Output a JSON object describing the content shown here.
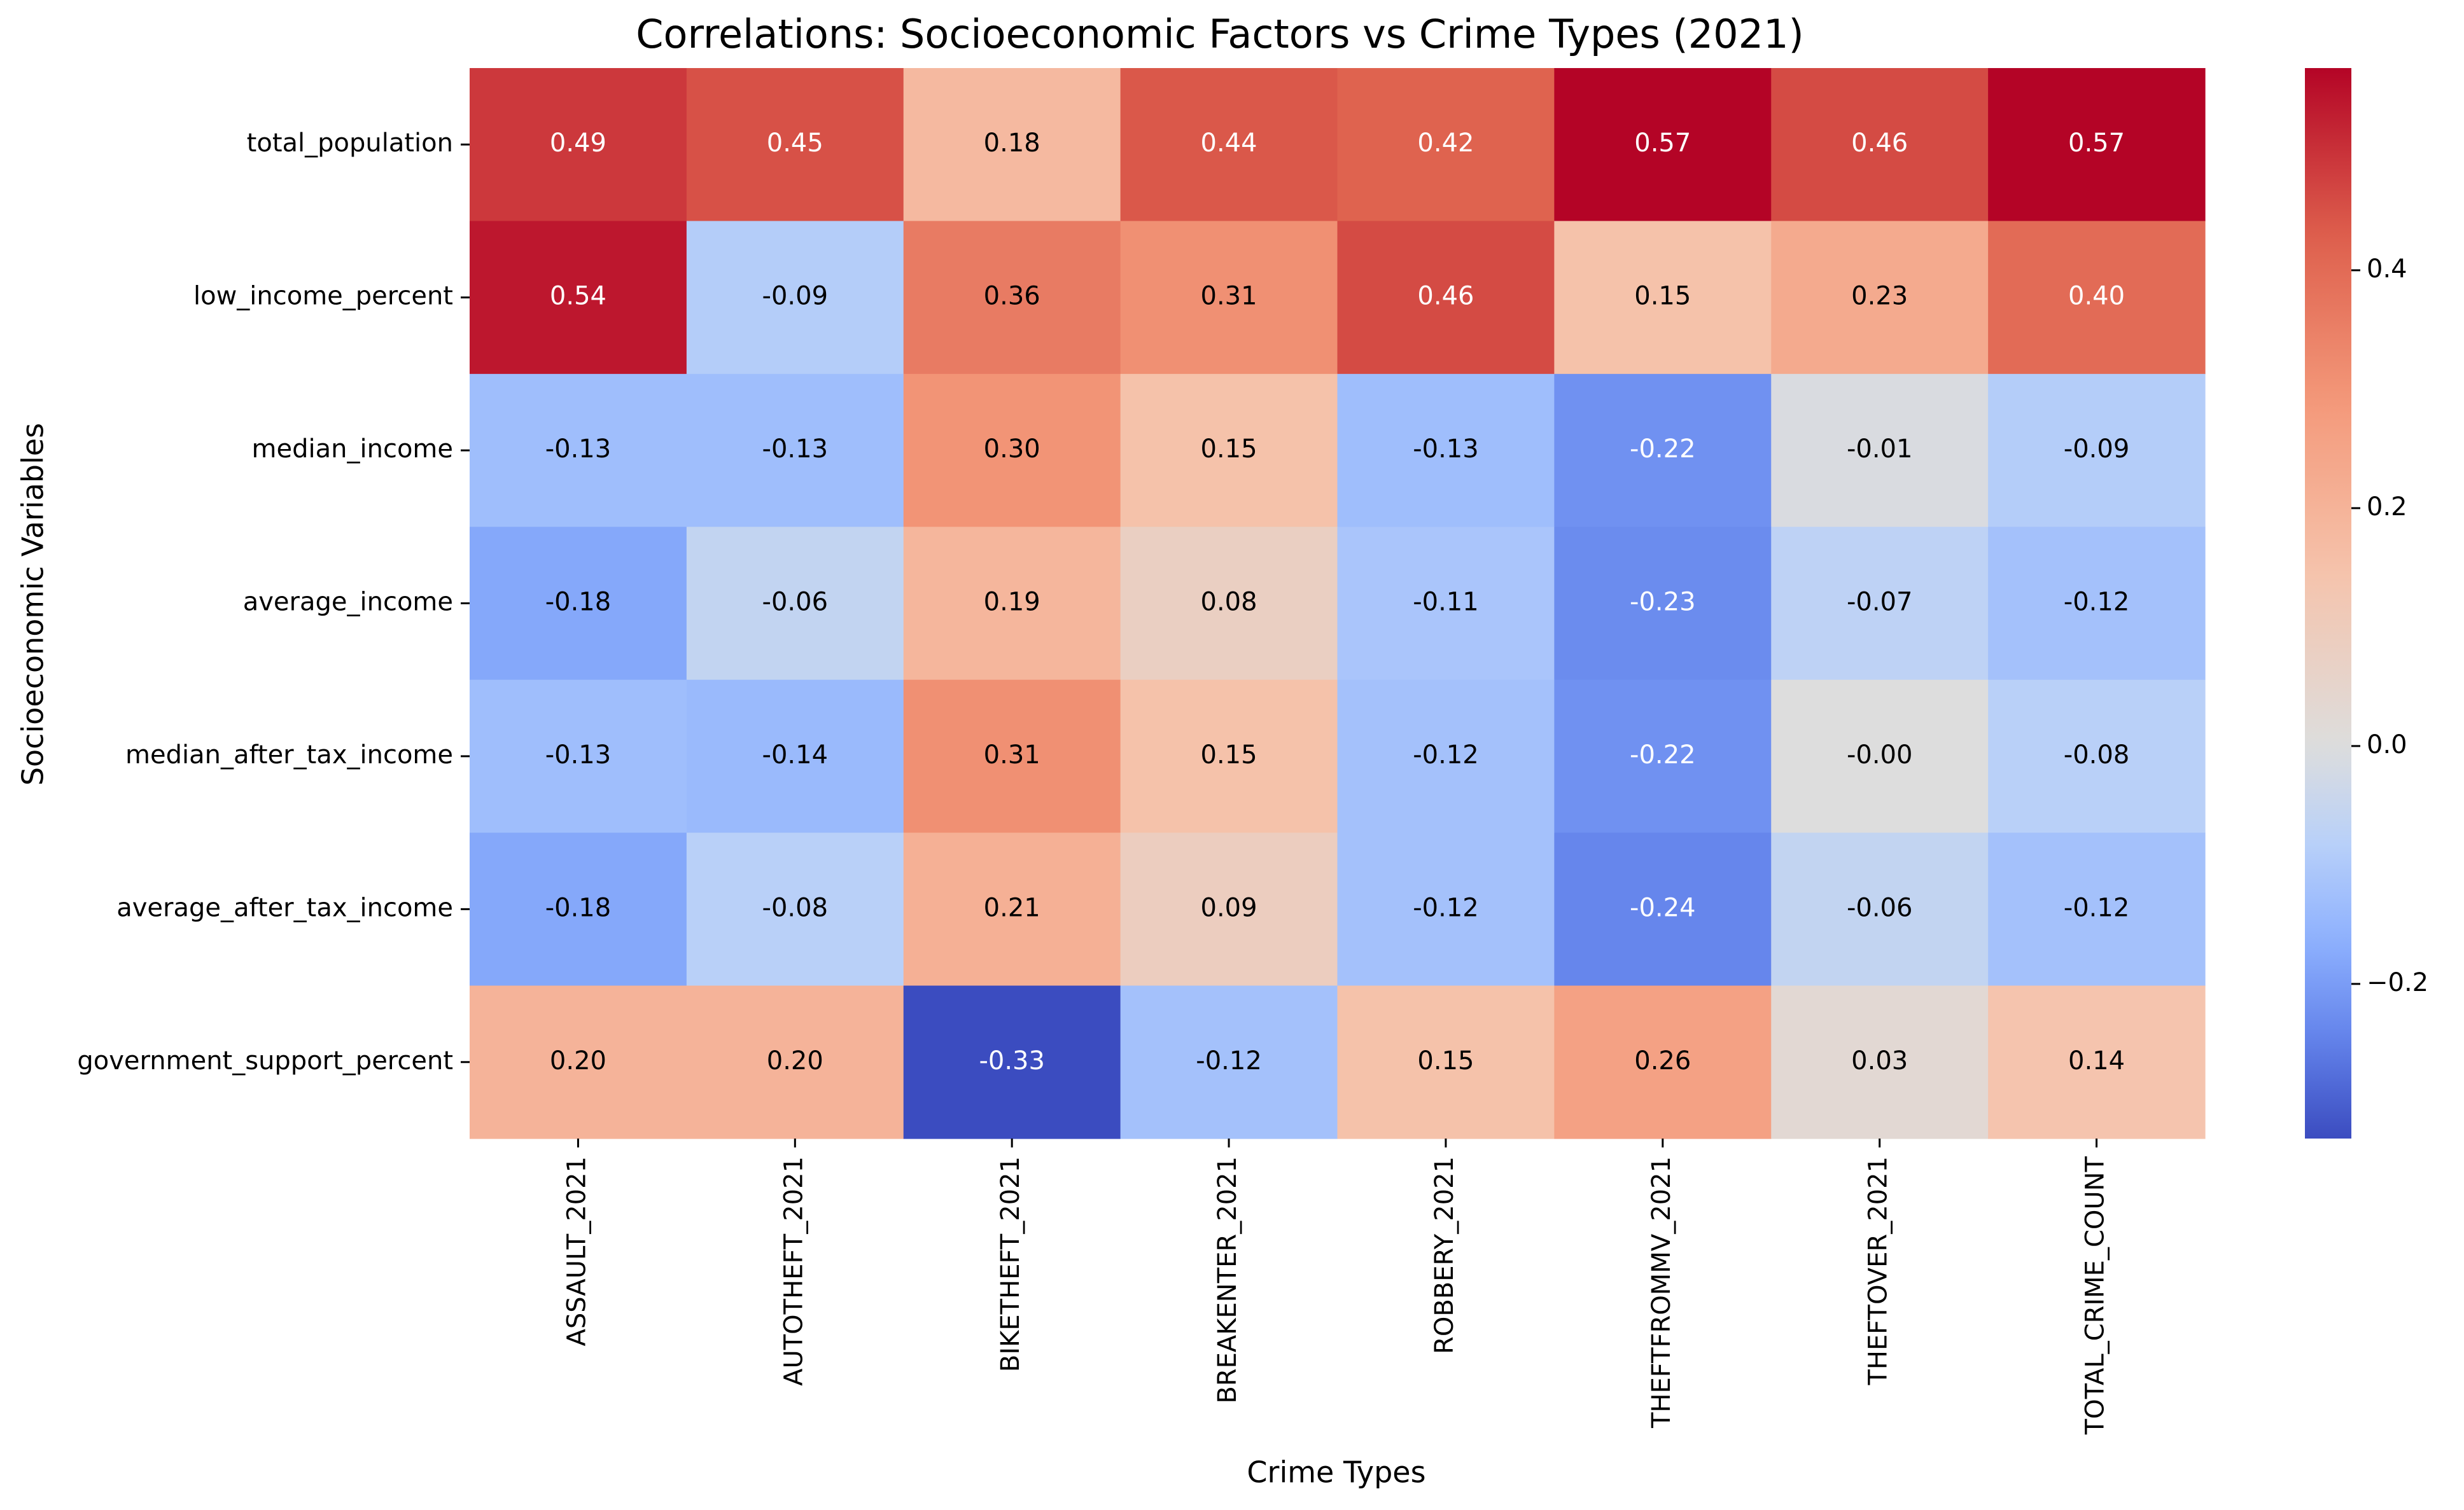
{
  "chart_data": {
    "type": "heatmap",
    "title": "Correlations: Socioeconomic Factors vs Crime Types (2021)",
    "xlabel": "Crime Types",
    "ylabel": "Socioeconomic Variables",
    "x_categories": [
      "ASSAULT_2021",
      "AUTOTHEFT_2021",
      "BIKETHEFT_2021",
      "BREAKENTER_2021",
      "ROBBERY_2021",
      "THEFTFROMMV_2021",
      "THEFTOVER_2021",
      "TOTAL_CRIME_COUNT"
    ],
    "y_categories": [
      "total_population",
      "low_income_percent",
      "median_income",
      "average_income",
      "median_after_tax_income",
      "average_after_tax_income",
      "government_support_percent"
    ],
    "values": [
      [
        0.49,
        0.45,
        0.18,
        0.44,
        0.42,
        0.57,
        0.46,
        0.57
      ],
      [
        0.54,
        -0.09,
        0.36,
        0.31,
        0.46,
        0.15,
        0.23,
        0.4
      ],
      [
        -0.13,
        -0.13,
        0.3,
        0.15,
        -0.13,
        -0.22,
        -0.01,
        -0.09
      ],
      [
        -0.18,
        -0.06,
        0.19,
        0.08,
        -0.11,
        -0.23,
        -0.07,
        -0.12
      ],
      [
        -0.13,
        -0.14,
        0.31,
        0.15,
        -0.12,
        -0.22,
        -0.0,
        -0.08
      ],
      [
        -0.18,
        -0.08,
        0.21,
        0.09,
        -0.12,
        -0.24,
        -0.06,
        -0.12
      ],
      [
        0.2,
        0.2,
        -0.33,
        -0.12,
        0.15,
        0.26,
        0.03,
        0.14
      ]
    ],
    "value_labels": [
      [
        "0.49",
        "0.45",
        "0.18",
        "0.44",
        "0.42",
        "0.57",
        "0.46",
        "0.57"
      ],
      [
        "0.54",
        "-0.09",
        "0.36",
        "0.31",
        "0.46",
        "0.15",
        "0.23",
        "0.40"
      ],
      [
        "-0.13",
        "-0.13",
        "0.30",
        "0.15",
        "-0.13",
        "-0.22",
        "-0.01",
        "-0.09"
      ],
      [
        "-0.18",
        "-0.06",
        "0.19",
        "0.08",
        "-0.11",
        "-0.23",
        "-0.07",
        "-0.12"
      ],
      [
        "-0.13",
        "-0.14",
        "0.31",
        "0.15",
        "-0.12",
        "-0.22",
        "-0.00",
        "-0.08"
      ],
      [
        "-0.18",
        "-0.08",
        "0.21",
        "0.09",
        "-0.12",
        "-0.24",
        "-0.06",
        "-0.12"
      ],
      [
        "0.20",
        "0.20",
        "-0.33",
        "-0.12",
        "0.15",
        "0.26",
        "0.03",
        "0.14"
      ]
    ],
    "colormap": "coolwarm",
    "color_range": [
      -0.33,
      0.57
    ],
    "colorbar_ticks": [
      -0.2,
      0.0,
      0.2,
      0.4
    ],
    "colorbar_tick_labels": [
      "−0.2",
      "0.0",
      "0.2",
      "0.4"
    ],
    "colorbar_position": "right",
    "grid": false,
    "legend": "none"
  }
}
